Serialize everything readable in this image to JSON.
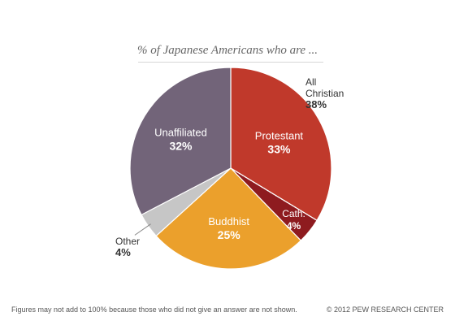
{
  "chart_data": {
    "type": "pie",
    "title": "% of Japanese Americans who are ...",
    "slices": [
      {
        "label": "Protestant",
        "value": 33,
        "value_label": "33%",
        "color": "#c0392b"
      },
      {
        "label": "Cath.",
        "value": 4,
        "value_label": "4%",
        "color": "#8e1b1f"
      },
      {
        "label": "Buddhist",
        "value": 25,
        "value_label": "25%",
        "color": "#eba02c"
      },
      {
        "label": "Other",
        "value": 4,
        "value_label": "4%",
        "color": "#c6c6c6"
      },
      {
        "label": "Unaffiliated",
        "value": 32,
        "value_label": "32%",
        "color": "#726479"
      }
    ],
    "group_annotation": {
      "label_line1": "All",
      "label_line2": "Christian",
      "value_label": "38%"
    },
    "footnote": "Figures may not add to 100% because those who did not give an answer are not shown.",
    "source": "© 2012 PEW RESEARCH CENTER"
  }
}
